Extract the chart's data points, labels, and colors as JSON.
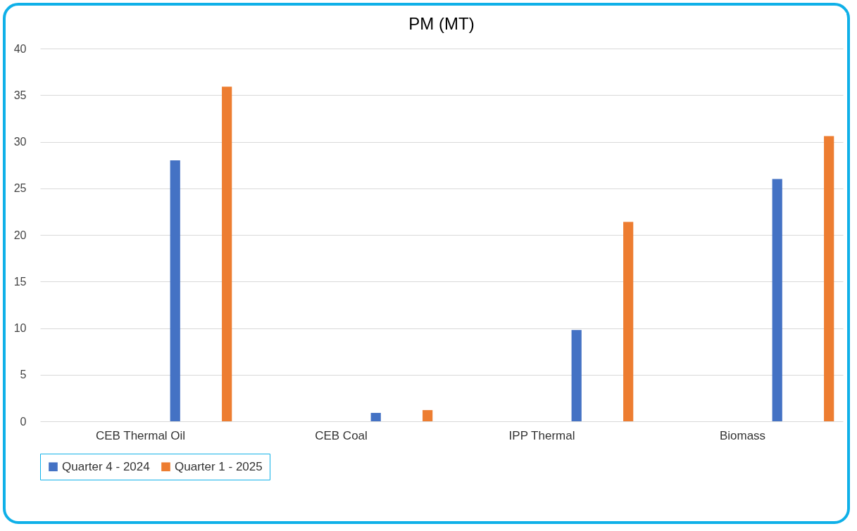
{
  "chart_data": {
    "type": "bar",
    "title": "PM (MT)",
    "categories": [
      "CEB Thermal Oil",
      "CEB Coal",
      "IPP Thermal",
      "Biomass"
    ],
    "series": [
      {
        "name": "Quarter 4 - 2024",
        "color": "#4472c4",
        "values": [
          28.0,
          0.9,
          9.8,
          26.0
        ]
      },
      {
        "name": "Quarter 1 - 2025",
        "color": "#ed7d31",
        "values": [
          35.9,
          1.2,
          21.4,
          30.6
        ]
      }
    ],
    "ylim": [
      0,
      40
    ],
    "yticks": [
      0,
      5,
      10,
      15,
      20,
      25,
      30,
      35,
      40
    ],
    "grid": true,
    "legend": "bottom"
  }
}
